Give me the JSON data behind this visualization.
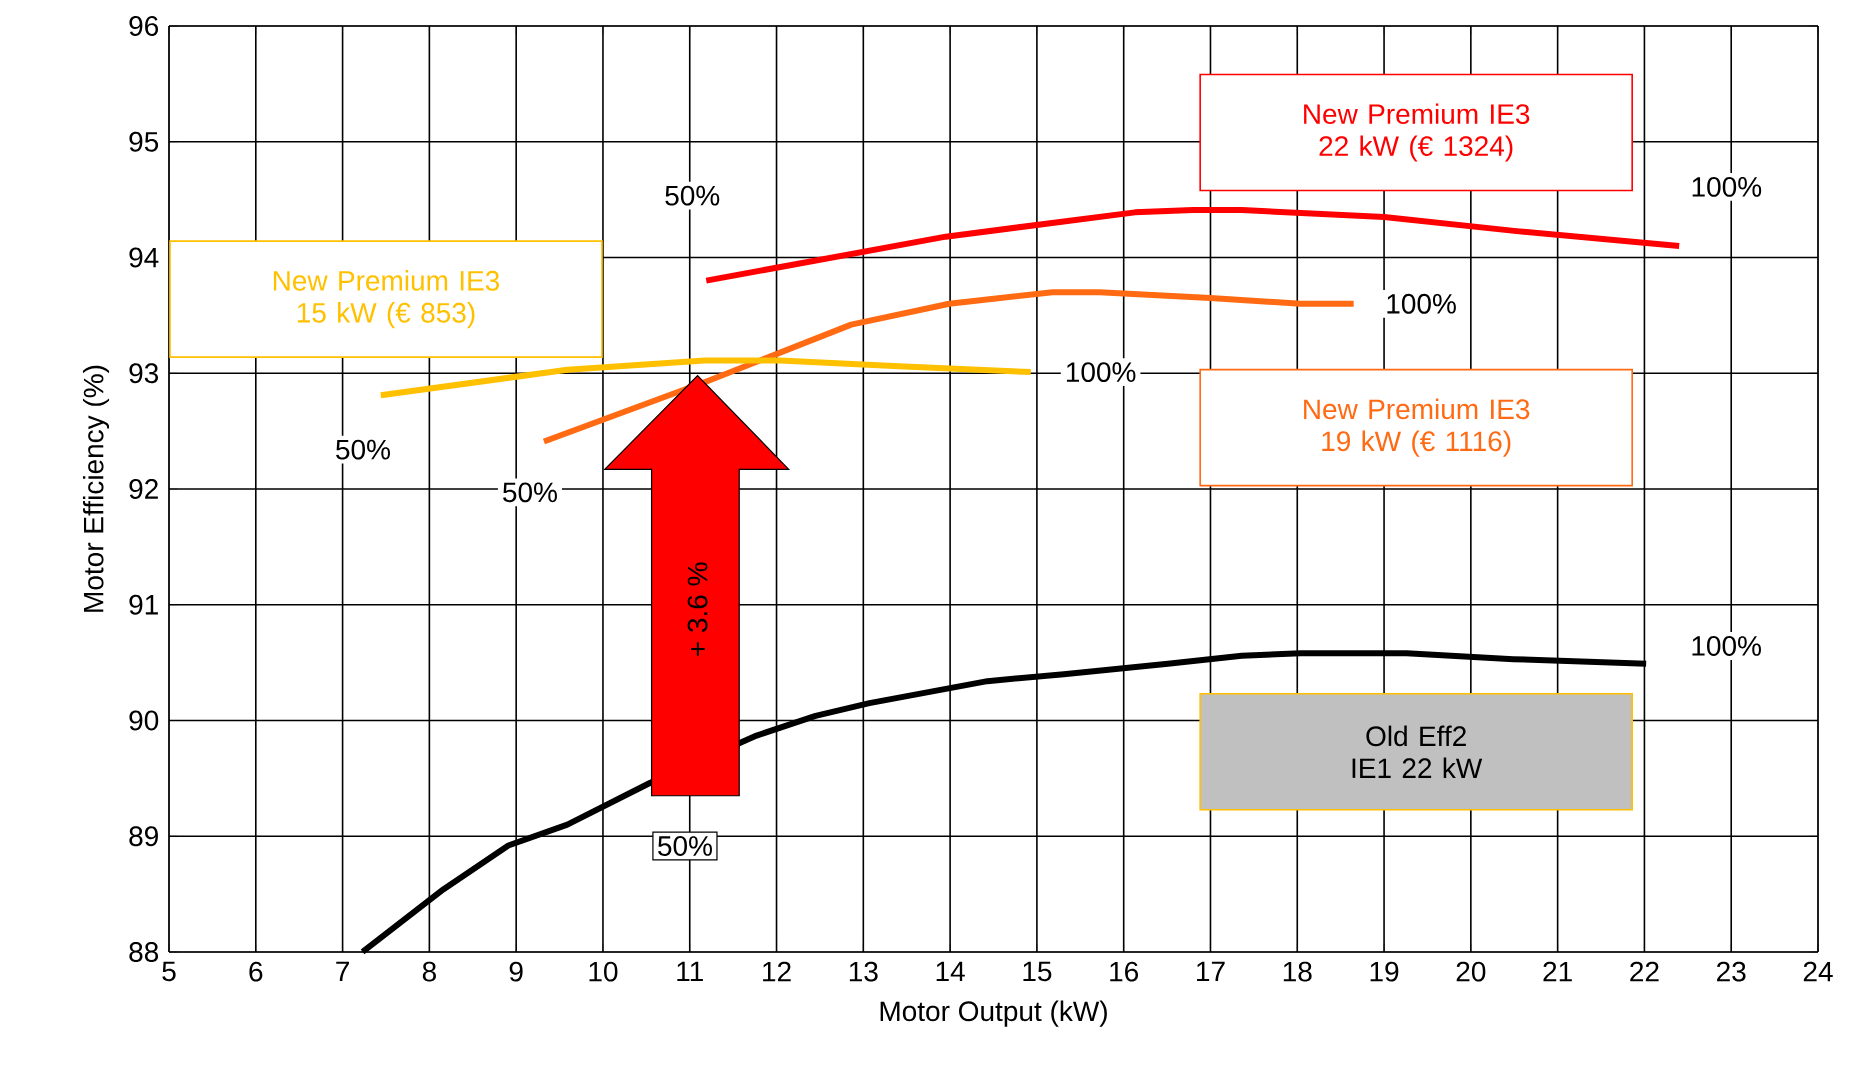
{
  "chart_data": {
    "type": "line",
    "xlabel": "Motor Output (kW)",
    "ylabel": "Motor Efficiency (%)",
    "xlim": [
      5,
      24
    ],
    "xticks": [
      5,
      6,
      7,
      8,
      9,
      10,
      11,
      12,
      13,
      14,
      15,
      16,
      17,
      18,
      19,
      20,
      21,
      22,
      23,
      24
    ],
    "ylim": [
      88,
      96
    ],
    "yticks": [
      88,
      89,
      90,
      91,
      92,
      93,
      94,
      95,
      96
    ],
    "grid": true,
    "line_style": "solid",
    "series": [
      {
        "name": "New Premium IE3 22 kW (€ 1324)",
        "color": "#ff0000",
        "x": [
          11.19,
          13.95,
          16.13,
          16.8,
          17.36,
          19.0,
          20.5,
          22.4
        ],
        "values": [
          93.8,
          94.18,
          94.39,
          94.41,
          94.41,
          94.35,
          94.23,
          94.1
        ]
      },
      {
        "name": "New Premium IE3 19 kW (€ 1116)",
        "color": "#ff6a13",
        "x": [
          9.32,
          11.23,
          12.86,
          13.99,
          15.18,
          15.72,
          17.0,
          18.04,
          18.65
        ],
        "values": [
          92.41,
          92.94,
          93.42,
          93.6,
          93.7,
          93.7,
          93.65,
          93.6,
          93.6
        ]
      },
      {
        "name": "New Premium IE3 15 kW (€ 853)",
        "color": "#ffc000",
        "x": [
          7.44,
          9.59,
          11.17,
          12.04,
          13.41,
          14.93
        ],
        "values": [
          92.81,
          93.03,
          93.11,
          93.11,
          93.06,
          93.01
        ]
      },
      {
        "name": "Old Eff2 IE1 22 kW",
        "color": "#000000",
        "x": [
          7.23,
          8.16,
          8.91,
          9.59,
          10.54,
          11.77,
          12.45,
          13.07,
          14.43,
          15.31,
          16.51,
          17.36,
          18.04,
          19.26,
          20.49,
          22.02
        ],
        "values": [
          88.0,
          88.54,
          88.92,
          89.1,
          89.46,
          89.87,
          90.04,
          90.15,
          90.34,
          90.4,
          90.49,
          90.56,
          90.58,
          90.58,
          90.53,
          90.49
        ]
      }
    ],
    "annotations": [
      {
        "text": "50%",
        "x": 11.19,
        "y": 93.8
      },
      {
        "text": "100%",
        "x": 22.4,
        "y": 94.1
      },
      {
        "text": "50%",
        "x": 9.32,
        "y": 92.41
      },
      {
        "text": "100%",
        "x": 18.65,
        "y": 93.6
      },
      {
        "text": "50%",
        "x": 7.44,
        "y": 92.81
      },
      {
        "text": "100%",
        "x": 14.93,
        "y": 93.01
      },
      {
        "text": "50%",
        "x": 11.0,
        "y": 89.6
      },
      {
        "text": "100%",
        "x": 22.02,
        "y": 90.49
      },
      "+ 3.6 %"
    ]
  }
}
